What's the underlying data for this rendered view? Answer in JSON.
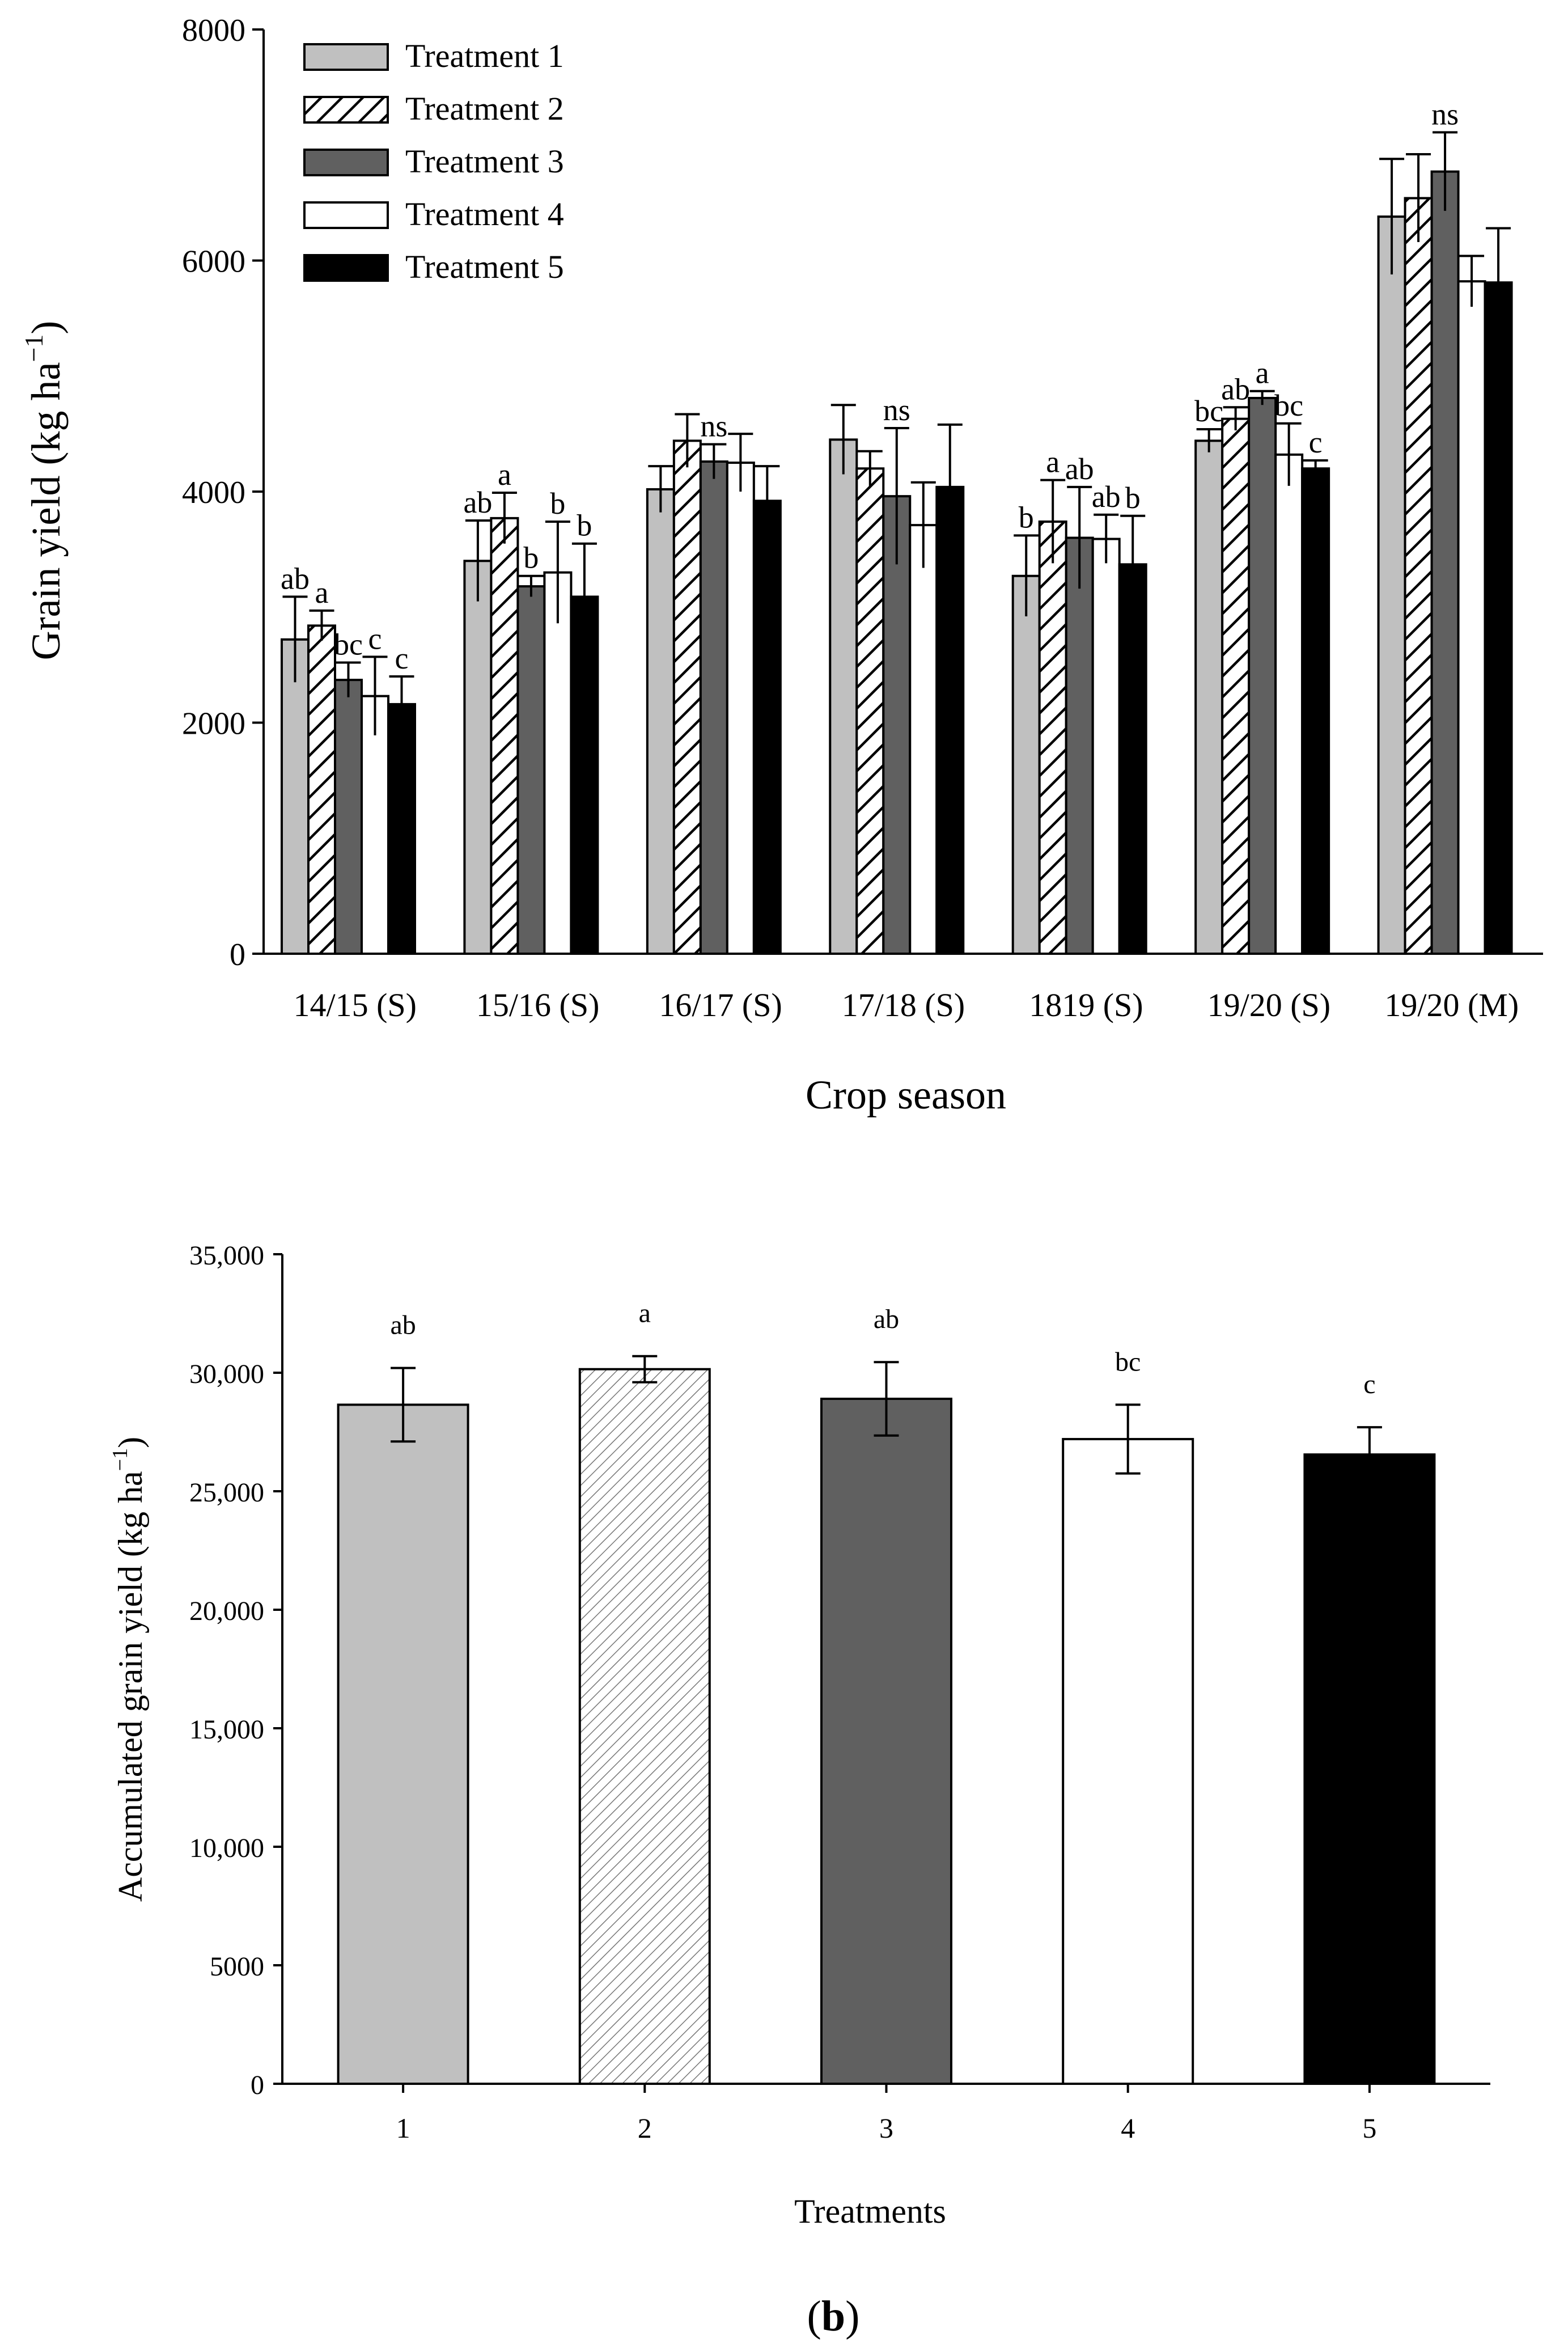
{
  "chart_data": [
    {
      "type": "bar",
      "xlabel": "Crop season",
      "ylabel": "Grain yield (kg ha",
      "ylabel_sup": "−1",
      "ylabel_close": ")",
      "ylim": [
        0,
        8000
      ],
      "yticks": [
        "0",
        "2000",
        "4000",
        "6000",
        "8000"
      ],
      "ytick_values": [
        0,
        2000,
        4000,
        6000,
        8000
      ],
      "categories": [
        "14/15 (S)",
        "15/16 (S)",
        "16/17 (S)",
        "17/18 (S)",
        "1819 (S)",
        "19/20 (S)",
        "19/20 (M)"
      ],
      "legend_position": "top-left",
      "grid": false,
      "series": [
        {
          "name": "Treatment 1",
          "style": "light-gray",
          "color": "#c0c0c0",
          "values": [
            2720,
            3400,
            4020,
            4450,
            3270,
            4440,
            6380
          ],
          "errors": [
            370,
            350,
            200,
            300,
            350,
            100,
            500
          ]
        },
        {
          "name": "Treatment 2",
          "style": "hatched",
          "color": "#ffffff",
          "values": [
            2840,
            3770,
            4440,
            4200,
            3740,
            4630,
            6540
          ],
          "errors": [
            130,
            220,
            230,
            150,
            360,
            100,
            380
          ]
        },
        {
          "name": "Treatment 3",
          "style": "dark-gray",
          "color": "#606060",
          "values": [
            2370,
            3180,
            4260,
            3960,
            3600,
            4810,
            6770
          ],
          "errors": [
            150,
            90,
            150,
            590,
            440,
            60,
            340
          ]
        },
        {
          "name": "Treatment 4",
          "style": "white",
          "color": "#ffffff",
          "values": [
            2230,
            3300,
            4250,
            3710,
            3590,
            4320,
            5820
          ],
          "errors": [
            340,
            440,
            250,
            370,
            210,
            270,
            220
          ]
        },
        {
          "name": "Treatment 5",
          "style": "black",
          "color": "#000000",
          "values": [
            2160,
            3090,
            3920,
            4040,
            3370,
            4200,
            5810
          ],
          "errors": [
            240,
            460,
            300,
            540,
            420,
            70,
            470
          ]
        }
      ],
      "annotations": [
        [
          "ab",
          "a",
          "bc",
          "c",
          "c"
        ],
        [
          "ab",
          "a",
          "b",
          "b",
          "b"
        ],
        [
          "",
          "",
          "ns",
          "",
          ""
        ],
        [
          "",
          "",
          "ns",
          "",
          ""
        ],
        [
          "b",
          "a",
          "ab",
          "ab",
          "b"
        ],
        [
          "bc",
          "ab",
          "a",
          "bc",
          "c"
        ],
        [
          "",
          "",
          "ns",
          "",
          ""
        ]
      ]
    },
    {
      "type": "bar",
      "xlabel": "Treatments",
      "ylabel": "Accumulated grain yield (kg ha",
      "ylabel_sup": "−1",
      "ylabel_close": ")",
      "ylim": [
        0,
        35000
      ],
      "yticks": [
        "0",
        "5000",
        "10,000",
        "15,000",
        "20,000",
        "25,000",
        "30,000",
        "35,000"
      ],
      "ytick_values": [
        0,
        5000,
        10000,
        15000,
        20000,
        25000,
        30000,
        35000
      ],
      "categories": [
        "1",
        "2",
        "3",
        "4",
        "5"
      ],
      "values": [
        28650,
        30150,
        28900,
        27200,
        26550
      ],
      "errors": [
        1550,
        550,
        1550,
        1450,
        1150
      ],
      "annotations": [
        "ab",
        "a",
        "ab",
        "bc",
        "c"
      ],
      "colors": [
        "#c0c0c0",
        "#ffffff",
        "#606060",
        "#ffffff",
        "#000000"
      ],
      "styles": [
        "light-gray",
        "hatched",
        "dark-gray",
        "white",
        "black"
      ],
      "grid": false
    }
  ],
  "panel_b_label": "b",
  "panel_b_open": "(",
  "panel_b_close": ")"
}
